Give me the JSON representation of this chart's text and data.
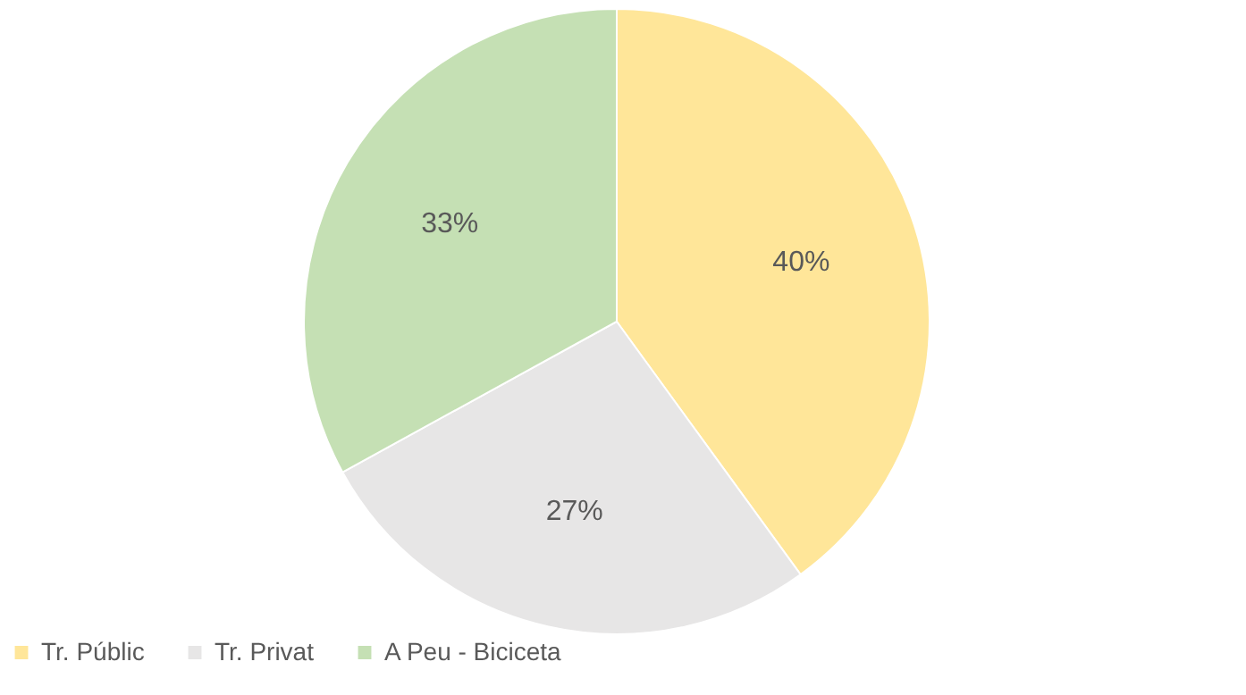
{
  "chart_data": {
    "type": "pie",
    "categories": [
      "Tr. Públic",
      "Tr. Privat",
      "A Peu - Biciceta"
    ],
    "values": [
      40,
      27,
      33
    ],
    "colors": [
      "#ffe699",
      "#e7e6e6",
      "#c5e0b4"
    ],
    "value_labels": [
      "40%",
      "27%",
      "33%"
    ],
    "legend": "bottom"
  }
}
